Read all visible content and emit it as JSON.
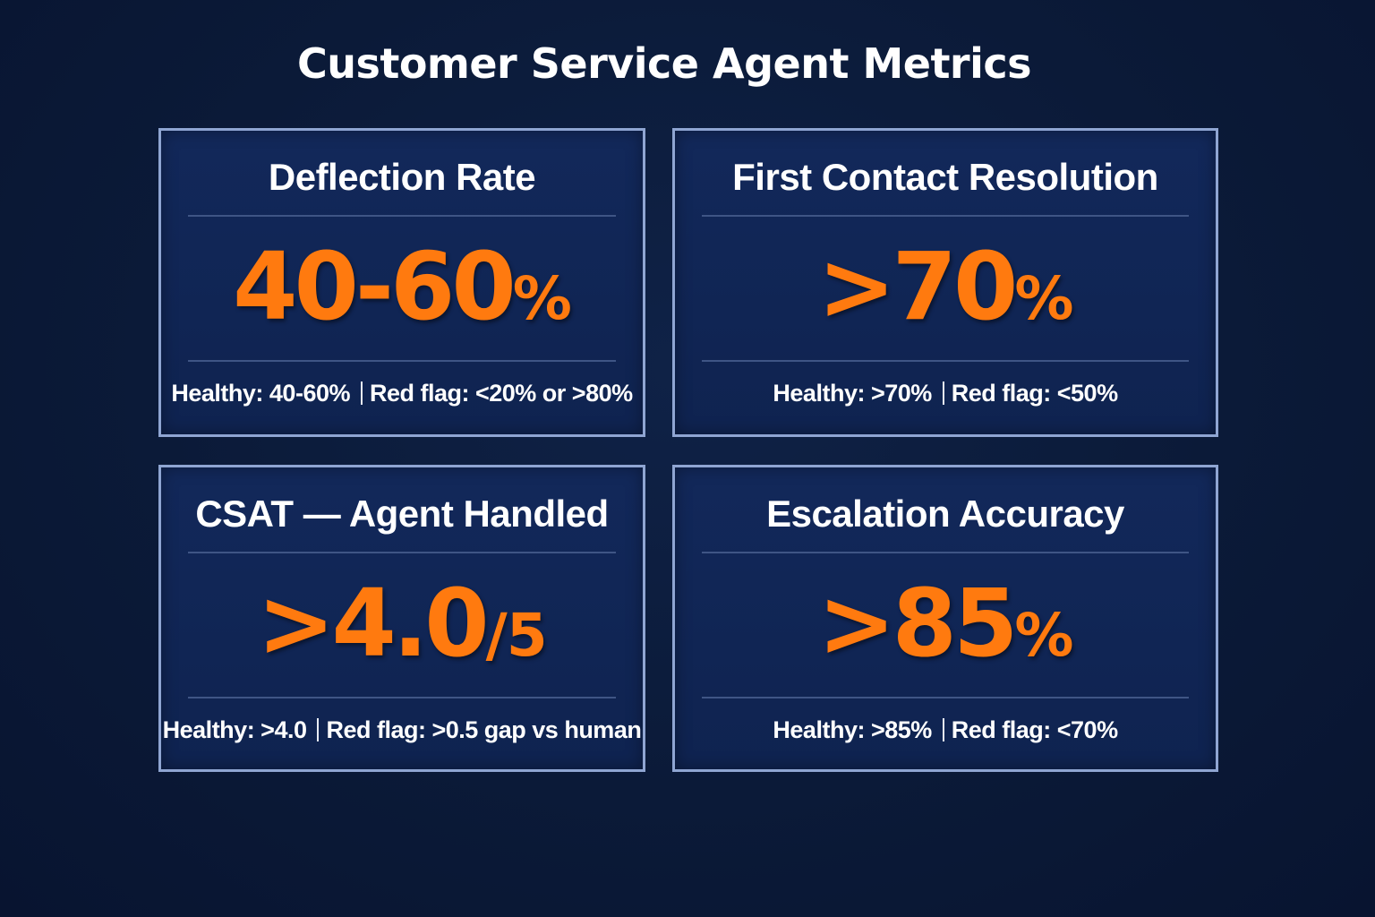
{
  "title": "Customer Service Agent Metrics",
  "accent_color": "#ff7a0f",
  "background_color": "#0b1a38",
  "cards": [
    {
      "title": "Deflection Rate",
      "value": "40-60",
      "unit": "%",
      "healthy": "Healthy: 40-60%",
      "red_flag": "Red flag: <20% or >80%"
    },
    {
      "title": "First Contact Resolution",
      "value": ">70",
      "unit": "%",
      "healthy": "Healthy: >70%",
      "red_flag": "Red flag: <50%"
    },
    {
      "title": "CSAT — Agent Handled",
      "value": ">4.0",
      "unit": "/5",
      "healthy": "Healthy: >4.0",
      "red_flag": "Red flag: >0.5 gap vs human"
    },
    {
      "title": "Escalation Accuracy",
      "value": ">85",
      "unit": "%",
      "healthy": "Healthy: >85%",
      "red_flag": "Red flag: <70%"
    }
  ]
}
